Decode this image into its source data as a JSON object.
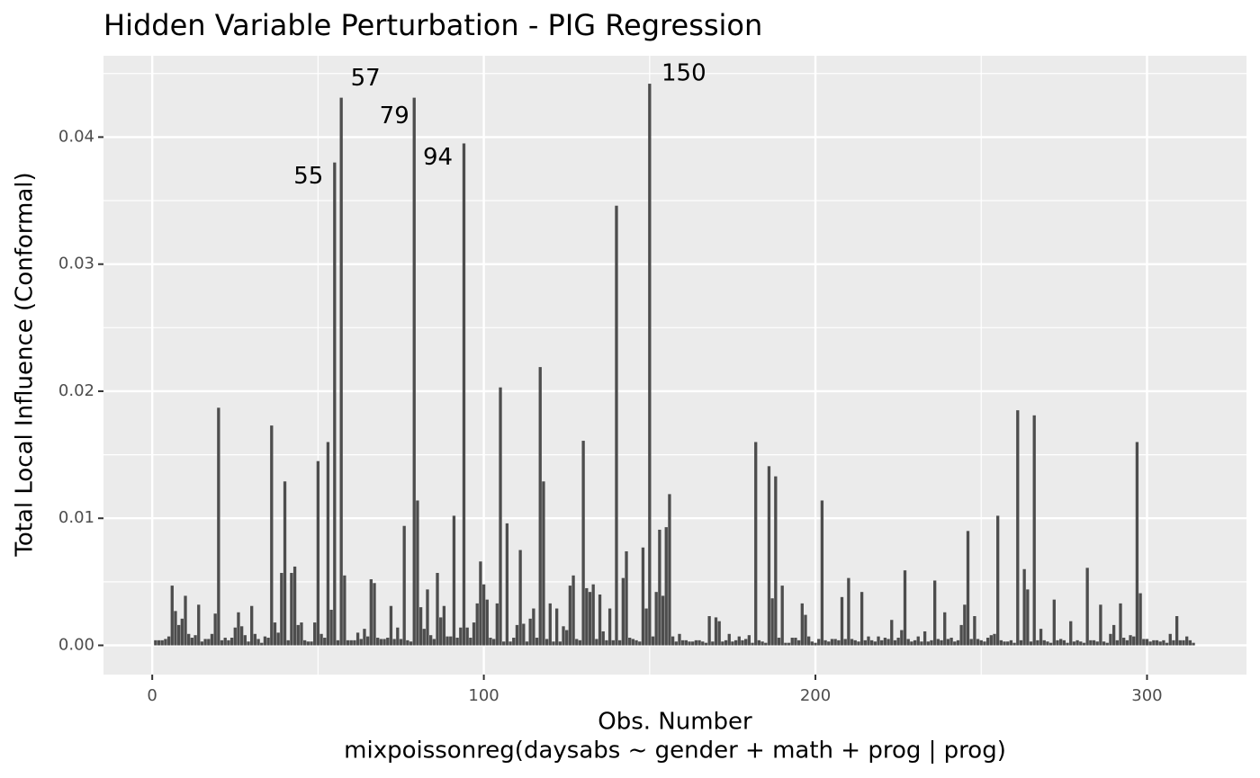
{
  "chart_data": {
    "type": "bar",
    "title": "Hidden Variable Perturbation - PIG Regression",
    "xlabel_lines": [
      "Obs. Number",
      "mixpoissonreg(daysabs ~ gender + math + prog | prog)"
    ],
    "ylabel": "Total Local Influence (Conformal)",
    "color": "#4d4d4d",
    "grid": true,
    "xlim": [
      -14.7,
      330
    ],
    "ylim": [
      -0.0023,
      0.0464
    ],
    "xticks": [
      0,
      100,
      200,
      300
    ],
    "xminorticks": [
      50,
      150,
      250
    ],
    "yticks": [
      {
        "value": 0,
        "label": "0.00"
      },
      {
        "value": 0.01,
        "label": "0.01"
      },
      {
        "value": 0.02,
        "label": "0.02"
      },
      {
        "value": 0.03,
        "label": "0.03"
      },
      {
        "value": 0.04,
        "label": "0.04"
      }
    ],
    "yminorticks": [
      0.005,
      0.015,
      0.025,
      0.035,
      0.045
    ],
    "annotations": [
      55,
      57,
      79,
      94,
      150
    ],
    "x": [
      1,
      2,
      3,
      4,
      5,
      6,
      7,
      8,
      9,
      10,
      11,
      12,
      13,
      14,
      15,
      16,
      17,
      18,
      19,
      20,
      21,
      22,
      23,
      24,
      25,
      26,
      27,
      28,
      29,
      30,
      31,
      32,
      33,
      34,
      35,
      36,
      37,
      38,
      39,
      40,
      41,
      42,
      43,
      44,
      45,
      46,
      47,
      48,
      49,
      50,
      51,
      52,
      53,
      54,
      55,
      56,
      57,
      58,
      59,
      60,
      61,
      62,
      63,
      64,
      65,
      66,
      67,
      68,
      69,
      70,
      71,
      72,
      73,
      74,
      75,
      76,
      77,
      78,
      79,
      80,
      81,
      82,
      83,
      84,
      85,
      86,
      87,
      88,
      89,
      90,
      91,
      92,
      93,
      94,
      95,
      96,
      97,
      98,
      99,
      100,
      101,
      102,
      103,
      104,
      105,
      106,
      107,
      108,
      109,
      110,
      111,
      112,
      113,
      114,
      115,
      116,
      117,
      118,
      119,
      120,
      121,
      122,
      123,
      124,
      125,
      126,
      127,
      128,
      129,
      130,
      131,
      132,
      133,
      134,
      135,
      136,
      137,
      138,
      139,
      140,
      141,
      142,
      143,
      144,
      145,
      146,
      147,
      148,
      149,
      150,
      151,
      152,
      153,
      154,
      155,
      156,
      157,
      158,
      159,
      160,
      161,
      162,
      163,
      164,
      165,
      166,
      167,
      168,
      169,
      170,
      171,
      172,
      173,
      174,
      175,
      176,
      177,
      178,
      179,
      180,
      181,
      182,
      183,
      184,
      185,
      186,
      187,
      188,
      189,
      190,
      191,
      192,
      193,
      194,
      195,
      196,
      197,
      198,
      199,
      200,
      201,
      202,
      203,
      204,
      205,
      206,
      207,
      208,
      209,
      210,
      211,
      212,
      213,
      214,
      215,
      216,
      217,
      218,
      219,
      220,
      221,
      222,
      223,
      224,
      225,
      226,
      227,
      228,
      229,
      230,
      231,
      232,
      233,
      234,
      235,
      236,
      237,
      238,
      239,
      240,
      241,
      242,
      243,
      244,
      245,
      246,
      247,
      248,
      249,
      250,
      251,
      252,
      253,
      254,
      255,
      256,
      257,
      258,
      259,
      260,
      261,
      262,
      263,
      264,
      265,
      266,
      267,
      268,
      269,
      270,
      271,
      272,
      273,
      274,
      275,
      276,
      277,
      278,
      279,
      280,
      281,
      282,
      283,
      284,
      285,
      286,
      287,
      288,
      289,
      290,
      291,
      292,
      293,
      294,
      295,
      296,
      297,
      298,
      299,
      300,
      301,
      302,
      303,
      304,
      305,
      306,
      307,
      308,
      309,
      310,
      311,
      312,
      313,
      314
    ],
    "values": [
      0.0004,
      0.0004,
      0.0004,
      0.0005,
      0.0007,
      0.0047,
      0.0027,
      0.0016,
      0.0021,
      0.0039,
      0.0009,
      0.0006,
      0.0008,
      0.0032,
      0.0003,
      0.0005,
      0.0005,
      0.0009,
      0.0025,
      0.0187,
      0.0004,
      0.0006,
      0.0004,
      0.0006,
      0.0014,
      0.0026,
      0.0015,
      0.0008,
      0.0003,
      0.0031,
      0.0009,
      0.0005,
      0.0002,
      0.0007,
      0.0006,
      0.0173,
      0.0018,
      0.001,
      0.0057,
      0.0129,
      0.0004,
      0.0057,
      0.0062,
      0.0016,
      0.0018,
      0.0004,
      0.0003,
      0.0003,
      0.0018,
      0.0145,
      0.0009,
      0.0006,
      0.016,
      0.0028,
      0.038,
      0.0004,
      0.0431,
      0.0055,
      0.0004,
      0.0004,
      0.0004,
      0.001,
      0.0005,
      0.0013,
      0.0007,
      0.0052,
      0.0049,
      0.0006,
      0.0005,
      0.0005,
      0.0006,
      0.0031,
      0.0005,
      0.0014,
      0.0005,
      0.0094,
      0.0004,
      0.0003,
      0.0431,
      0.0114,
      0.003,
      0.0013,
      0.0044,
      0.0008,
      0.0005,
      0.0057,
      0.0022,
      0.0031,
      0.0007,
      0.0007,
      0.0102,
      0.0006,
      0.0014,
      0.0395,
      0.0014,
      0.0006,
      0.0018,
      0.0033,
      0.0066,
      0.0048,
      0.0036,
      0.0006,
      0.0005,
      0.0033,
      0.0203,
      0.0003,
      0.0096,
      0.0003,
      0.0006,
      0.0016,
      0.0075,
      0.0017,
      0.0003,
      0.0021,
      0.0029,
      0.0006,
      0.0219,
      0.0129,
      0.0005,
      0.0033,
      0.0003,
      0.0029,
      0.0003,
      0.0015,
      0.0012,
      0.0047,
      0.0055,
      0.0005,
      0.0004,
      0.0161,
      0.0045,
      0.0042,
      0.0048,
      0.0005,
      0.004,
      0.0011,
      0.0004,
      0.0029,
      0.0004,
      0.0346,
      0.0004,
      0.0053,
      0.0074,
      0.0006,
      0.0005,
      0.0004,
      0.0003,
      0.0077,
      0.0029,
      0.0442,
      0.0007,
      0.0042,
      0.0091,
      0.0039,
      0.0093,
      0.0119,
      0.0007,
      0.0003,
      0.0009,
      0.0004,
      0.0004,
      0.0003,
      0.0003,
      0.0004,
      0.0004,
      0.0003,
      0.0002,
      0.0023,
      0.0003,
      0.0022,
      0.0019,
      0.0003,
      0.0004,
      0.0009,
      0.0003,
      0.0004,
      0.0007,
      0.0004,
      0.0005,
      0.0008,
      0.0002,
      0.016,
      0.0004,
      0.0003,
      0.0002,
      0.0141,
      0.0037,
      0.0133,
      0.0006,
      0.0047,
      0.0002,
      0.0002,
      0.0006,
      0.0006,
      0.0004,
      0.0033,
      0.0024,
      0.0007,
      0.0003,
      0.0002,
      0.0005,
      0.0114,
      0.0004,
      0.0003,
      0.0005,
      0.0005,
      0.0004,
      0.0038,
      0.0005,
      0.0053,
      0.0005,
      0.0004,
      0.0003,
      0.0042,
      0.0004,
      0.0007,
      0.0004,
      0.0003,
      0.0007,
      0.0004,
      0.0006,
      0.0005,
      0.002,
      0.0004,
      0.0006,
      0.0012,
      0.0059,
      0.0005,
      0.0003,
      0.0004,
      0.0007,
      0.0003,
      0.0011,
      0.0003,
      0.0004,
      0.0051,
      0.0005,
      0.0004,
      0.0026,
      0.0005,
      0.0006,
      0.0003,
      0.0004,
      0.0016,
      0.0032,
      0.009,
      0.0005,
      0.0023,
      0.0005,
      0.0004,
      0.0003,
      0.0006,
      0.0008,
      0.0009,
      0.0102,
      0.0004,
      0.0003,
      0.0003,
      0.0004,
      0.0002,
      0.0185,
      0.0004,
      0.006,
      0.0044,
      0.0003,
      0.0181,
      0.0004,
      0.0013,
      0.0004,
      0.0003,
      0.0002,
      0.0036,
      0.0004,
      0.0005,
      0.0004,
      0.0002,
      0.0019,
      0.0003,
      0.0004,
      0.0003,
      0.0002,
      0.0061,
      0.0004,
      0.0004,
      0.0003,
      0.0032,
      0.0003,
      0.0002,
      0.0009,
      0.0016,
      0.0004,
      0.0033,
      0.0006,
      0.0004,
      0.0008,
      0.0007,
      0.016,
      0.0041,
      0.0005,
      0.0005,
      0.0003,
      0.0004,
      0.0004,
      0.0003,
      0.0004,
      0.0002,
      0.0009,
      0.0004,
      0.0023,
      0.0004,
      0.0004,
      0.0007,
      0.0004,
      0.0002
    ]
  }
}
